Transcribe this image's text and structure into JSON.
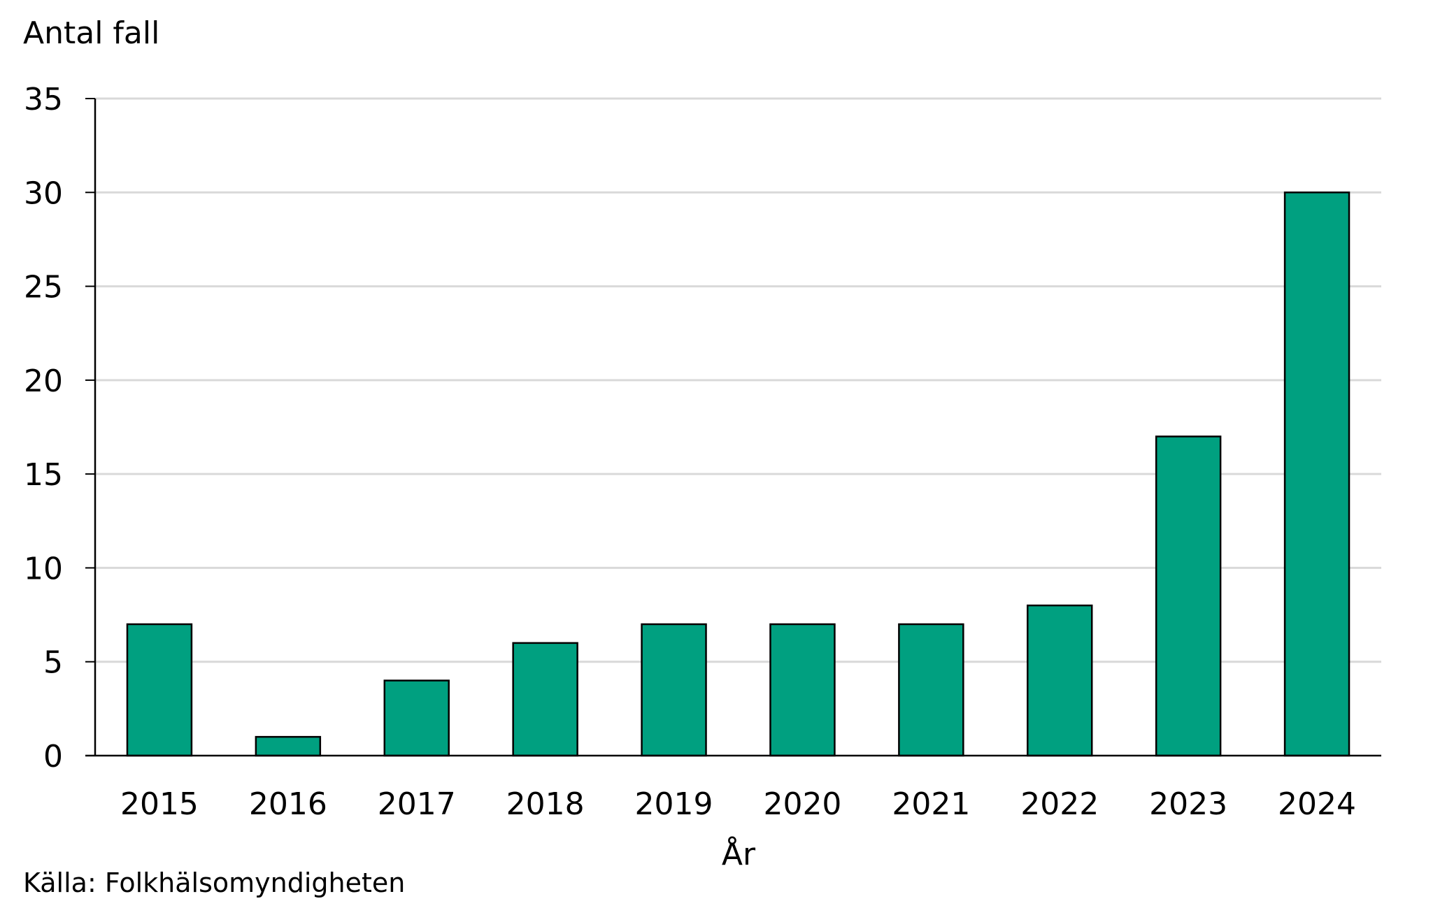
{
  "chart_data": {
    "type": "bar",
    "title": "",
    "ylabel": "Antal fall",
    "xlabel": "År",
    "source": "Källa: Folkhälsomyndigheten",
    "categories": [
      "2015",
      "2016",
      "2017",
      "2018",
      "2019",
      "2020",
      "2021",
      "2022",
      "2023",
      "2024"
    ],
    "values": [
      7,
      1,
      4,
      6,
      7,
      7,
      7,
      8,
      17,
      30
    ],
    "ylim": [
      0,
      35
    ],
    "yticks": [
      0,
      5,
      10,
      15,
      20,
      25,
      30,
      35
    ],
    "grid": true,
    "legend": "none",
    "bar_color": "#00A080",
    "bar_edge_color": "#000000",
    "grid_color": "#D9D9D9"
  }
}
